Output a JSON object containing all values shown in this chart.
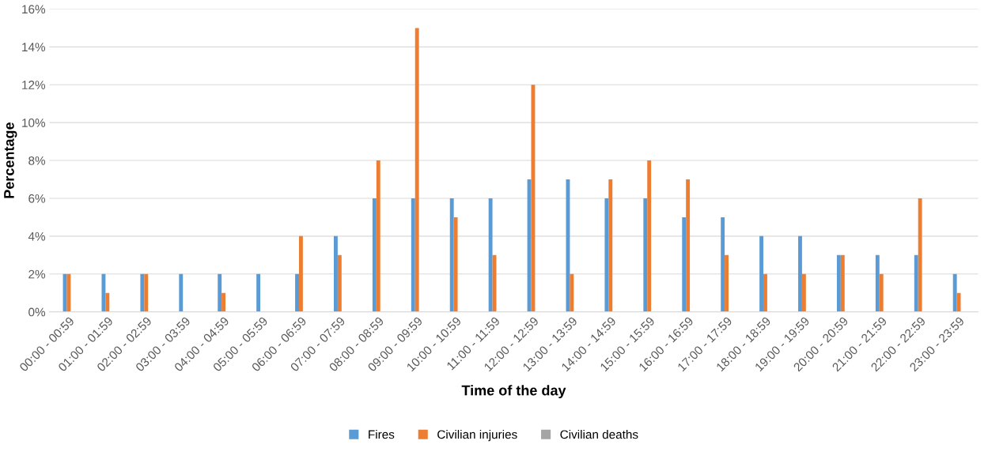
{
  "chart_data": {
    "type": "bar",
    "xlabel": "Time of the day",
    "ylabel": "Percentage",
    "categories": [
      "00:00 - 00:59",
      "01:00 - 01:59",
      "02:00 - 02:59",
      "03:00 - 03:59",
      "04:00 - 04:59",
      "05:00 - 05:59",
      "06:00 - 06:59",
      "07:00 - 07:59",
      "08:00 - 08:59",
      "09:00 - 09:59",
      "10:00 - 10:59",
      "11:00 - 11:59",
      "12:00 - 12:59",
      "13:00 - 13:59",
      "14:00 - 14:59",
      "15:00 - 15:59",
      "16:00 - 16:59",
      "17:00 - 17:59",
      "18:00 - 18:59",
      "19:00 - 19:59",
      "20:00 - 20:59",
      "21:00 - 21:59",
      "22:00 - 22:59",
      "23:00 - 23:59"
    ],
    "series": [
      {
        "name": "Fires",
        "color": "#5b9bd5",
        "values": [
          2,
          2,
          2,
          2,
          2,
          2,
          2,
          4,
          6,
          6,
          6,
          6,
          7,
          7,
          6,
          6,
          5,
          5,
          4,
          4,
          3,
          3,
          3,
          2
        ]
      },
      {
        "name": "Civilian injuries",
        "color": "#ed7d31",
        "values": [
          2,
          1,
          2,
          0,
          1,
          0,
          4,
          3,
          8,
          15,
          5,
          3,
          12,
          2,
          7,
          8,
          7,
          3,
          2,
          2,
          3,
          2,
          6,
          1
        ]
      },
      {
        "name": "Civilian deaths",
        "color": "#a5a5a5",
        "values": [
          0,
          0,
          0,
          0,
          0,
          0,
          0,
          0,
          0,
          0,
          0,
          0,
          0,
          0,
          0,
          0,
          0,
          0,
          0,
          0,
          0,
          0,
          0,
          0
        ]
      }
    ],
    "ylim": [
      0,
      16
    ],
    "yticks": [
      {
        "value": 0,
        "label": "0%"
      },
      {
        "value": 2,
        "label": "2%"
      },
      {
        "value": 4,
        "label": "4%"
      },
      {
        "value": 6,
        "label": "6%"
      },
      {
        "value": 8,
        "label": "8%"
      },
      {
        "value": 10,
        "label": "10%"
      },
      {
        "value": 12,
        "label": "12%"
      },
      {
        "value": 14,
        "label": "14%"
      },
      {
        "value": 16,
        "label": "16%"
      }
    ],
    "grid": "y",
    "legend": "bottom"
  }
}
